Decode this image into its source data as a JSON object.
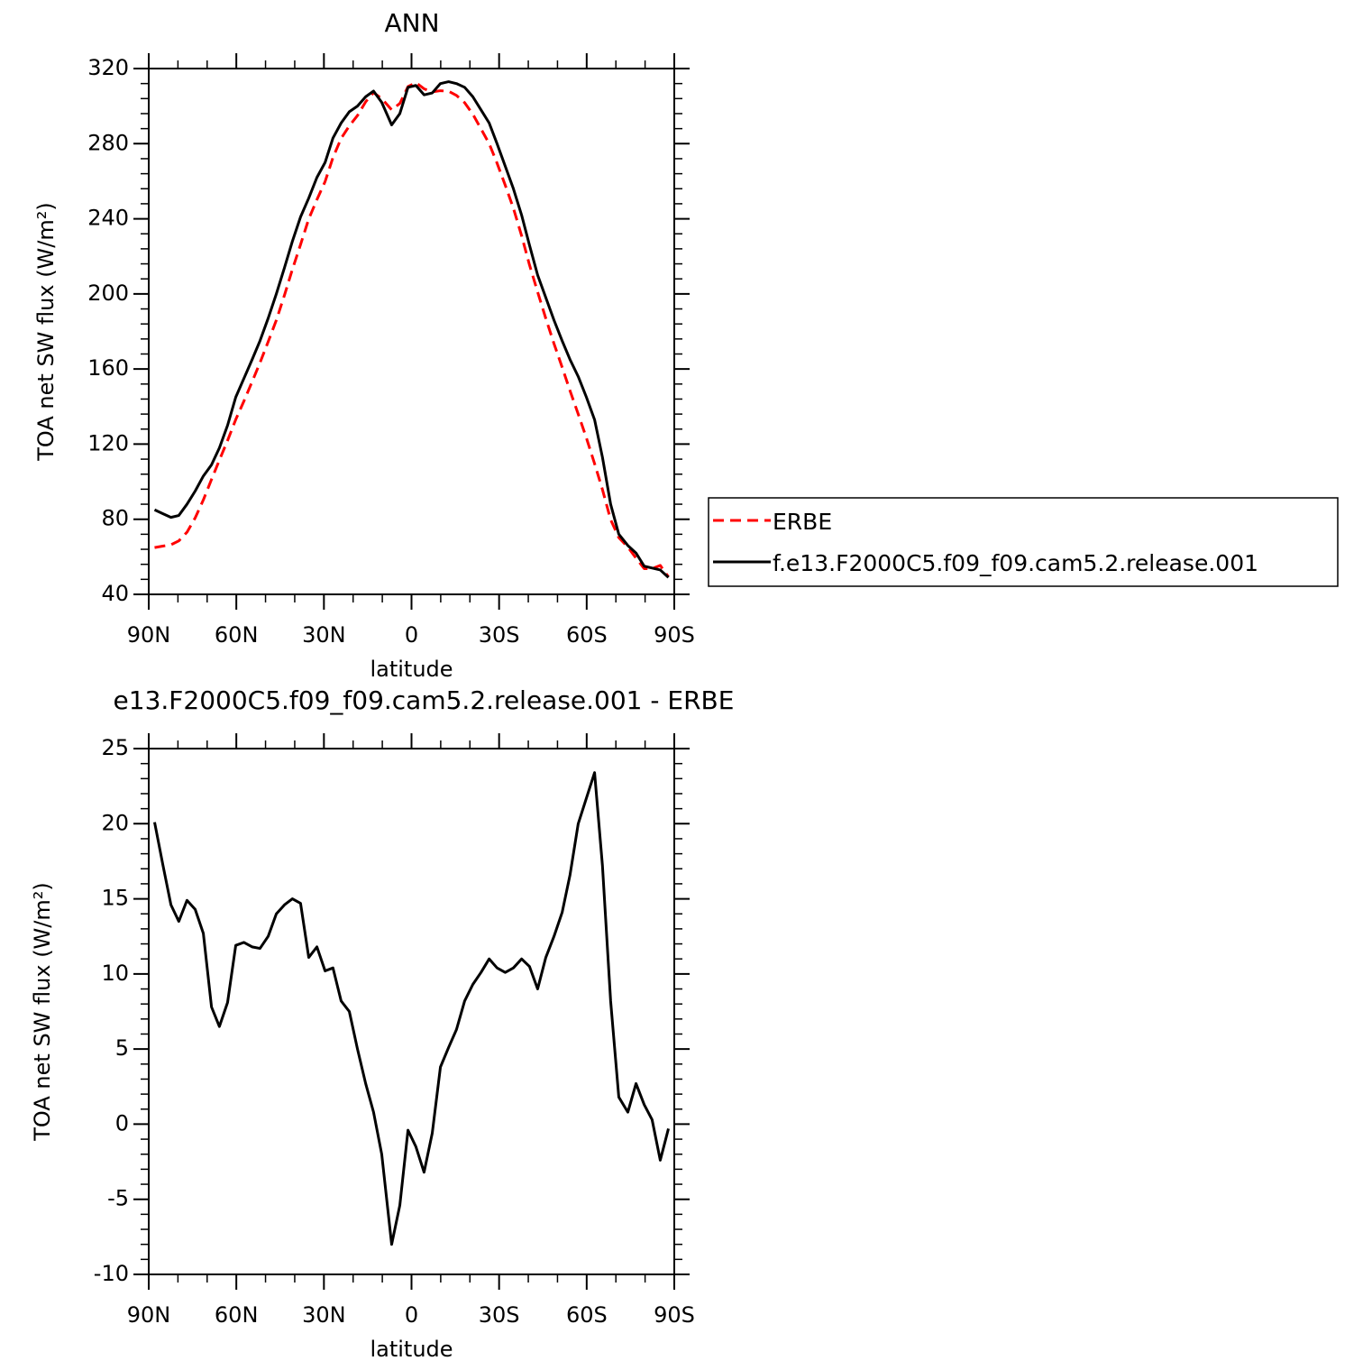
{
  "chart_data": [
    {
      "type": "line",
      "title": "ANN",
      "xlabel": "latitude",
      "ylabel": "TOA net SW flux (W/m²)",
      "x": [
        88.0,
        85.2,
        82.4,
        79.7,
        76.9,
        74.1,
        71.3,
        68.5,
        65.8,
        63.0,
        60.2,
        57.4,
        54.6,
        51.9,
        49.1,
        46.3,
        43.5,
        40.8,
        38.0,
        35.2,
        32.4,
        29.6,
        26.9,
        24.1,
        21.3,
        18.5,
        15.7,
        13.0,
        10.2,
        6.8,
        4.0,
        1.2,
        -1.5,
        -4.3,
        -7.1,
        -9.9,
        -12.7,
        -15.4,
        -18.2,
        -21.0,
        -23.8,
        -26.6,
        -29.3,
        -32.1,
        -34.9,
        -37.7,
        -40.4,
        -43.2,
        -46.0,
        -48.8,
        -51.6,
        -54.3,
        -57.1,
        -59.9,
        -62.7,
        -65.4,
        -68.2,
        -71.0,
        -74.1,
        -76.9,
        -79.7,
        -82.4,
        -85.2,
        -88.0
      ],
      "series": [
        {
          "name": "ERBE",
          "color": "#ff0000",
          "linestyle": "dashed",
          "values": [
            64.9,
            65.7,
            66.4,
            68.5,
            73.1,
            80.7,
            90.3,
            101.2,
            111.5,
            121.9,
            133.1,
            142.9,
            153.2,
            163.3,
            174.5,
            186.0,
            199.4,
            213.0,
            226.3,
            239.9,
            250.2,
            259.8,
            272.6,
            282.8,
            289.5,
            295.0,
            302.3,
            307.2,
            304.0,
            298.0,
            301.4,
            310.4,
            312.5,
            309.2,
            307.6,
            308.2,
            307.9,
            305.7,
            301.8,
            295.7,
            287.9,
            280.0,
            269.6,
            257.9,
            245.6,
            231.0,
            215.5,
            201.0,
            186.9,
            173.5,
            160.9,
            148.4,
            136.0,
            123.3,
            109.6,
            95.8,
            79.8,
            70.2,
            65.2,
            59.3,
            53.7,
            53.7,
            55.4,
            49.3
          ]
        },
        {
          "name": "f.e13.F2000C5.f09_f09.cam5.2.release.001",
          "color": "#000000",
          "linestyle": "solid",
          "values": [
            85,
            83,
            81,
            82,
            88,
            95,
            103,
            109,
            118,
            130,
            145,
            155,
            165,
            175,
            187,
            200,
            214,
            228,
            241,
            251,
            262,
            270,
            283,
            291,
            297,
            300,
            305,
            308,
            302,
            290,
            296,
            310,
            311,
            306,
            307,
            312,
            313,
            312,
            310,
            305,
            298,
            291,
            280,
            268,
            256,
            242,
            226,
            210,
            198,
            186,
            175,
            165,
            156,
            145,
            133,
            113,
            88,
            72,
            66,
            62,
            55,
            54,
            53,
            49
          ]
        }
      ],
      "xlim": [
        90,
        -90
      ],
      "xticks": [
        {
          "value": 90,
          "label": "90N"
        },
        {
          "value": 60,
          "label": "60N"
        },
        {
          "value": 30,
          "label": "30N"
        },
        0,
        {
          "value": -30,
          "label": "30S"
        },
        {
          "value": -60,
          "label": "60S"
        },
        {
          "value": -90,
          "label": "90S"
        }
      ],
      "ylim": [
        40,
        320
      ],
      "yticks": [
        40,
        80,
        120,
        160,
        200,
        240,
        280,
        320
      ],
      "legend": "outside right"
    },
    {
      "type": "line",
      "title": "e13.F2000C5.f09_f09.cam5.2.release.001 - ERBE",
      "xlabel": "latitude",
      "ylabel": "TOA net SW flux (W/m²)",
      "x": [
        88.0,
        85.2,
        82.4,
        79.7,
        76.9,
        74.1,
        71.3,
        68.5,
        65.8,
        63.0,
        60.2,
        57.4,
        54.6,
        51.9,
        49.1,
        46.3,
        43.5,
        40.8,
        38.0,
        35.2,
        32.4,
        29.6,
        26.9,
        24.1,
        21.3,
        18.5,
        15.7,
        13.0,
        10.2,
        6.8,
        4.0,
        1.2,
        -1.5,
        -4.3,
        -7.1,
        -9.9,
        -12.7,
        -15.4,
        -18.2,
        -21.0,
        -23.8,
        -26.6,
        -29.3,
        -32.1,
        -34.9,
        -37.7,
        -40.4,
        -43.2,
        -46.0,
        -48.8,
        -51.6,
        -54.3,
        -57.1,
        -59.9,
        -62.7,
        -65.4,
        -68.2,
        -71.0,
        -74.1,
        -76.9,
        -79.7,
        -82.4,
        -85.2,
        -88.0
      ],
      "values": [
        20.1,
        17.3,
        14.6,
        13.5,
        14.9,
        14.3,
        12.7,
        7.8,
        6.5,
        8.1,
        11.9,
        12.1,
        11.8,
        11.7,
        12.5,
        14.0,
        14.6,
        15.0,
        14.7,
        11.1,
        11.8,
        10.2,
        10.4,
        8.2,
        7.5,
        5.0,
        2.7,
        0.8,
        -2.0,
        -8.0,
        -5.4,
        -0.4,
        -1.5,
        -3.2,
        -0.6,
        3.8,
        5.1,
        6.3,
        8.2,
        9.3,
        10.1,
        11.0,
        10.4,
        10.1,
        10.4,
        11.0,
        10.5,
        9.0,
        11.1,
        12.5,
        14.1,
        16.6,
        20.0,
        21.7,
        23.4,
        17.2,
        8.2,
        1.8,
        0.8,
        2.7,
        1.3,
        0.3,
        -2.4,
        -0.3
      ],
      "color": "#000000",
      "xlim": [
        90,
        -90
      ],
      "xticks": [
        {
          "value": 90,
          "label": "90N"
        },
        {
          "value": 60,
          "label": "60N"
        },
        {
          "value": 30,
          "label": "30N"
        },
        0,
        {
          "value": -30,
          "label": "30S"
        },
        {
          "value": -60,
          "label": "60S"
        },
        {
          "value": -90,
          "label": "90S"
        }
      ],
      "ylim": [
        -10,
        25
      ],
      "yticks": [
        -10,
        -5,
        0,
        5,
        10,
        15,
        20,
        25
      ]
    }
  ]
}
